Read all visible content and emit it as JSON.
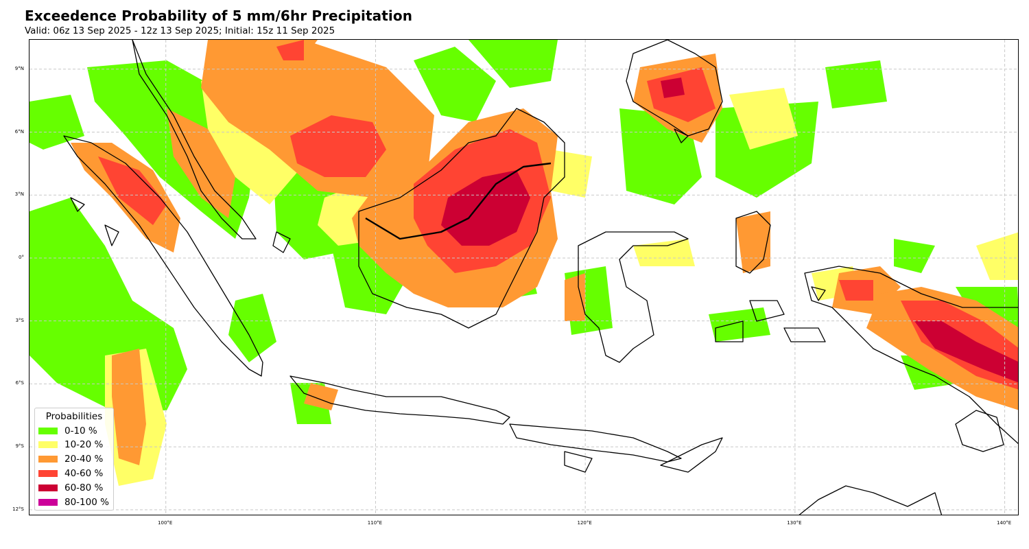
{
  "title": "Exceedence Probability of 5 mm/6hr Precipitation",
  "subtitle": "Valid: 06z 13 Sep 2025 - 12z 13 Sep 2025; Initial: 15z 11 Sep 2025",
  "map": {
    "region": "Indonesia / Maritime Continent",
    "projection": "PlateCarree",
    "lon_range": [
      93.5,
      140.7
    ],
    "lat_range": [
      -12.3,
      10.4
    ],
    "gridlines": true,
    "lat_ticks": [
      {
        "value": 9,
        "label": "9°N"
      },
      {
        "value": 6,
        "label": "6°N"
      },
      {
        "value": 3,
        "label": "3°N"
      },
      {
        "value": 0,
        "label": "0°"
      },
      {
        "value": -3,
        "label": "3°S"
      },
      {
        "value": -6,
        "label": "6°S"
      },
      {
        "value": -9,
        "label": "9°S"
      },
      {
        "value": -12,
        "label": "12°S"
      }
    ],
    "lon_ticks": [
      {
        "value": 100,
        "label": "100°E"
      },
      {
        "value": 110,
        "label": "110°E"
      },
      {
        "value": 120,
        "label": "120°E"
      },
      {
        "value": 130,
        "label": "130°E"
      },
      {
        "value": 140,
        "label": "140°E"
      }
    ]
  },
  "legend": {
    "title": "Probabilities",
    "placement": "lower-left",
    "items": [
      {
        "label": "0-10 %",
        "color": "#66ff00"
      },
      {
        "label": "10-20 %",
        "color": "#ffff66"
      },
      {
        "label": "20-40 %",
        "color": "#ff9933"
      },
      {
        "label": "40-60 %",
        "color": "#ff4433"
      },
      {
        "label": "60-80 %",
        "color": "#cc0033"
      },
      {
        "label": "80-100 %",
        "color": "#cc0099"
      }
    ]
  }
}
